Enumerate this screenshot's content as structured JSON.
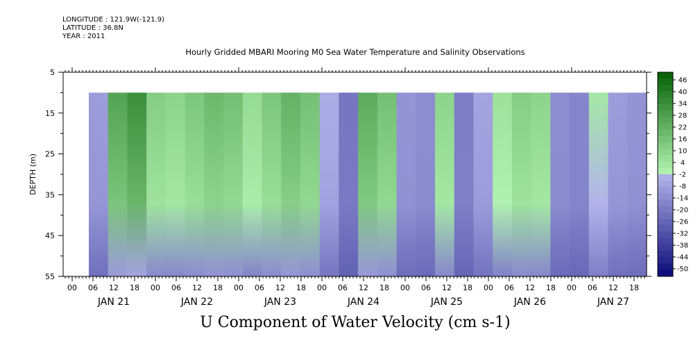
{
  "header": {
    "longitude": "LONGITUDE : 121.9W(-121.9)",
    "latitude": "LATITUDE : 36.8N",
    "year": "YEAR : 2011",
    "title": "Hourly Gridded MBARI Mooring M0 Sea Water Temperature and Salinity Observations"
  },
  "chart_data": {
    "type": "heatmap",
    "title": "U Component of Water Velocity (cm s-1)",
    "ylabel": "DEPTH (m)",
    "ylim": [
      55,
      5
    ],
    "yticks": [
      "5",
      "15",
      "25",
      "35",
      "45",
      "55"
    ],
    "xtick_hours": [
      "00",
      "06",
      "12",
      "18",
      "00",
      "06",
      "12",
      "18",
      "00",
      "06",
      "12",
      "18",
      "00",
      "06",
      "12",
      "18",
      "00",
      "06",
      "12",
      "18",
      "00",
      "06",
      "12",
      "18",
      "00",
      "06",
      "12",
      "18"
    ],
    "day_labels": [
      "JAN 21",
      "JAN 22",
      "JAN 23",
      "JAN 24",
      "JAN 25",
      "JAN 26",
      "JAN 27"
    ],
    "data_depth_range": [
      10,
      55
    ],
    "colorbar_levels": [
      "46",
      "40",
      "34",
      "28",
      "22",
      "16",
      "10",
      "4",
      "-2",
      "-8",
      "-14",
      "-20",
      "-26",
      "-32",
      "-38",
      "-44",
      "-50"
    ],
    "colorbar_range": [
      -50,
      46
    ],
    "x_days": [
      "JAN 21",
      "JAN 21",
      "JAN 21",
      "JAN 21",
      "JAN 22",
      "JAN 22",
      "JAN 22",
      "JAN 22",
      "JAN 22",
      "JAN 23",
      "JAN 23",
      "JAN 23",
      "JAN 23",
      "JAN 24",
      "JAN 24",
      "JAN 24",
      "JAN 24",
      "JAN 25",
      "JAN 25",
      "JAN 25",
      "JAN 25",
      "JAN 26",
      "JAN 26",
      "JAN 26",
      "JAN 26",
      "JAN 27",
      "JAN 27",
      "JAN 27",
      "JAN 27"
    ],
    "u_velocity_columns": [
      -8,
      22,
      28,
      10,
      8,
      12,
      16,
      14,
      6,
      12,
      18,
      14,
      -4,
      -18,
      20,
      14,
      -10,
      -12,
      8,
      -16,
      -6,
      4,
      10,
      8,
      -12,
      -14,
      2,
      -8,
      -10
    ]
  }
}
